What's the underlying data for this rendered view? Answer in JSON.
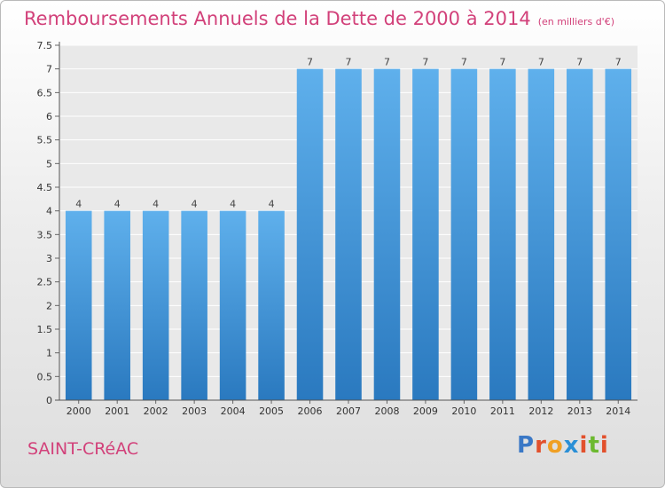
{
  "title": {
    "main": "Remboursements Annuels de la Dette de 2000 à 2014",
    "sub": "(en milliers d'€)"
  },
  "commune": "SAINT-CRéAC",
  "logo": {
    "letters": [
      "P",
      "r",
      "o",
      "x",
      "i",
      "t",
      "i"
    ],
    "colors": [
      "#3a78c6",
      "#e2502c",
      "#f0a024",
      "#2a8fd6",
      "#e2502c",
      "#6cb92f",
      "#e2502c"
    ]
  },
  "colors": {
    "bar_light": "#5fb0ec",
    "bar_dark": "#2a79bf",
    "title": "#d2417a"
  },
  "chart_data": {
    "type": "bar",
    "categories": [
      "2000",
      "2001",
      "2002",
      "2003",
      "2004",
      "2005",
      "2006",
      "2007",
      "2008",
      "2009",
      "2010",
      "2011",
      "2012",
      "2013",
      "2014"
    ],
    "values": [
      4,
      4,
      4,
      4,
      4,
      4,
      7,
      7,
      7,
      7,
      7,
      7,
      7,
      7,
      7
    ],
    "data_labels": [
      "4",
      "4",
      "4",
      "4",
      "4",
      "4",
      "7",
      "7",
      "7",
      "7",
      "7",
      "7",
      "7",
      "7",
      "7"
    ],
    "ylim": [
      0,
      7.5
    ],
    "yticks": [
      "0",
      "0.5",
      "1",
      "1.5",
      "2",
      "2.5",
      "3",
      "3.5",
      "4",
      "4.5",
      "5",
      "5.5",
      "6",
      "6.5",
      "7",
      "7.5"
    ],
    "grid": true
  }
}
